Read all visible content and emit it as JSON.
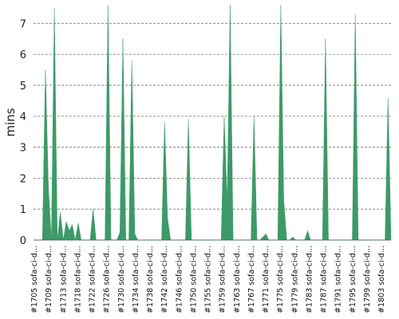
{
  "chart_data": {
    "type": "area",
    "ylabel": "mins",
    "ylim": [
      0,
      7.6
    ],
    "yticks": [
      0,
      1,
      2,
      3,
      4,
      5,
      6,
      7
    ],
    "grid": true,
    "color": "#3d9a68",
    "x_labels": [
      "#1705 sofa-ci-d...",
      "#1709 sofa-ci-d...",
      "#1713 sofa-ci-d...",
      "#1718 sofa-ci-d...",
      "#1722 sofa-ci-d...",
      "#1726 sofa-ci-d...",
      "#1730 sofa-ci-d...",
      "#1734 sofa-ci-d...",
      "#1738 sofa-ci-d...",
      "#1742 sofa-ci-d...",
      "#1746 sofa-ci-d...",
      "#1750 sofa-ci-d...",
      "#1755 sofa-ci-d...",
      "#1759 sofa-ci-d...",
      "#1763 sofa-ci-d...",
      "#1767 sofa-ci-d...",
      "#1771 sofa-ci-d...",
      "#1775 sofa-ci-d...",
      "#1779 sofa-ci-d...",
      "#1783 sofa-ci-d...",
      "#1787 sofa-ci-d...",
      "#1791 sofa-ci-d...",
      "#1795 sofa-ci-d...",
      "#1799 sofa-ci-d...",
      "#1803 sofa-ci-d..."
    ],
    "values": [
      0,
      0,
      0,
      0,
      5.5,
      1.7,
      0,
      7.5,
      0,
      0.9,
      0,
      0.6,
      0.3,
      0.5,
      0,
      0.55,
      0,
      0,
      0,
      0,
      1,
      0,
      0,
      0,
      0,
      7.6,
      0,
      0,
      0,
      0.25,
      6.5,
      0,
      0,
      5.8,
      0.2,
      0,
      0,
      0,
      0,
      0,
      0,
      0,
      0,
      0,
      3.8,
      0.7,
      0,
      0,
      0,
      0,
      0,
      0,
      3.9,
      0,
      0,
      0,
      0,
      0,
      0,
      0,
      0,
      0,
      0,
      0,
      4.0,
      1.2,
      7.6,
      0,
      0,
      0,
      0,
      0,
      0,
      0,
      4.0,
      0,
      0,
      0.1,
      0.2,
      0,
      0,
      0,
      0,
      7.6,
      1.3,
      0,
      0,
      0.1,
      0,
      0,
      0,
      0,
      0.3,
      0,
      0,
      0,
      0,
      0,
      6.5,
      0,
      0,
      0,
      0,
      0,
      0,
      0,
      0,
      0,
      7.3,
      0,
      0,
      0,
      0,
      0,
      0,
      0,
      0,
      0,
      0,
      4.6,
      0
    ]
  }
}
